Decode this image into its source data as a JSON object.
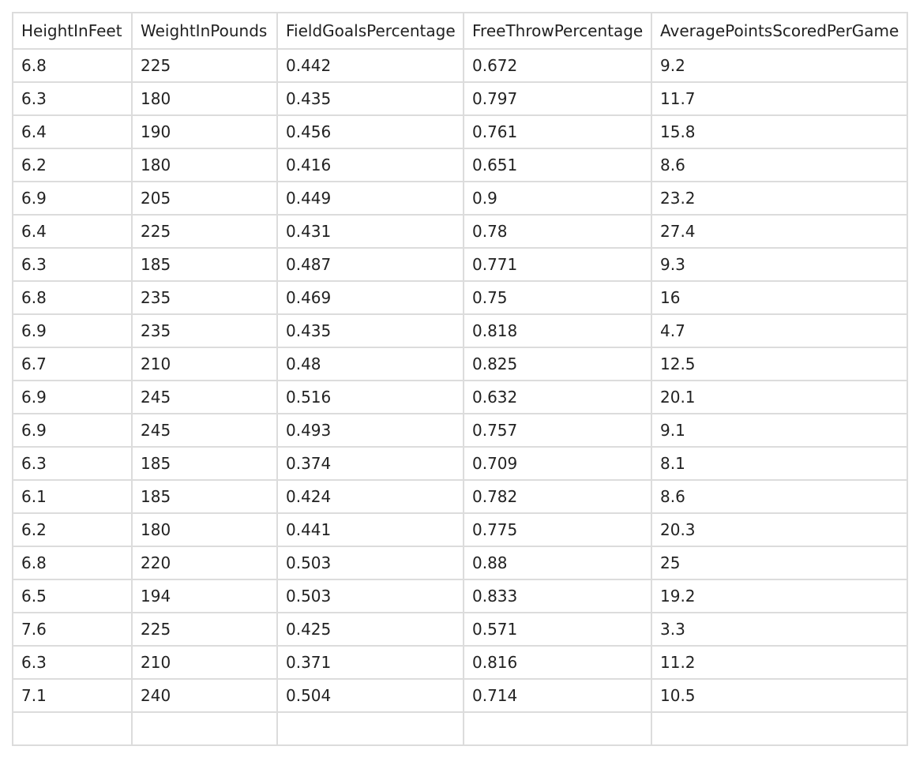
{
  "table": {
    "columns": [
      "HeightInFeet",
      "WeightInPounds",
      "FieldGoalsPercentage",
      "FreeThrowPercentage",
      "AveragePointsScoredPerGame"
    ],
    "rows": [
      [
        "6.8",
        "225",
        "0.442",
        "0.672",
        "9.2"
      ],
      [
        "6.3",
        "180",
        "0.435",
        "0.797",
        "11.7"
      ],
      [
        "6.4",
        "190",
        "0.456",
        "0.761",
        "15.8"
      ],
      [
        "6.2",
        "180",
        "0.416",
        "0.651",
        "8.6"
      ],
      [
        "6.9",
        "205",
        "0.449",
        "0.9",
        "23.2"
      ],
      [
        "6.4",
        "225",
        "0.431",
        "0.78",
        "27.4"
      ],
      [
        "6.3",
        "185",
        "0.487",
        "0.771",
        "9.3"
      ],
      [
        "6.8",
        "235",
        "0.469",
        "0.75",
        "16"
      ],
      [
        "6.9",
        "235",
        "0.435",
        "0.818",
        "4.7"
      ],
      [
        "6.7",
        "210",
        "0.48",
        "0.825",
        "12.5"
      ],
      [
        "6.9",
        "245",
        "0.516",
        "0.632",
        "20.1"
      ],
      [
        "6.9",
        "245",
        "0.493",
        "0.757",
        "9.1"
      ],
      [
        "6.3",
        "185",
        "0.374",
        "0.709",
        "8.1"
      ],
      [
        "6.1",
        "185",
        "0.424",
        "0.782",
        "8.6"
      ],
      [
        "6.2",
        "180",
        "0.441",
        "0.775",
        "20.3"
      ],
      [
        "6.8",
        "220",
        "0.503",
        "0.88",
        "25"
      ],
      [
        "6.5",
        "194",
        "0.503",
        "0.833",
        "19.2"
      ],
      [
        "7.6",
        "225",
        "0.425",
        "0.571",
        "3.3"
      ],
      [
        "6.3",
        "210",
        "0.371",
        "0.816",
        "11.2"
      ],
      [
        "7.1",
        "240",
        "0.504",
        "0.714",
        "10.5"
      ],
      [
        "",
        "",
        "",
        "",
        ""
      ]
    ]
  }
}
